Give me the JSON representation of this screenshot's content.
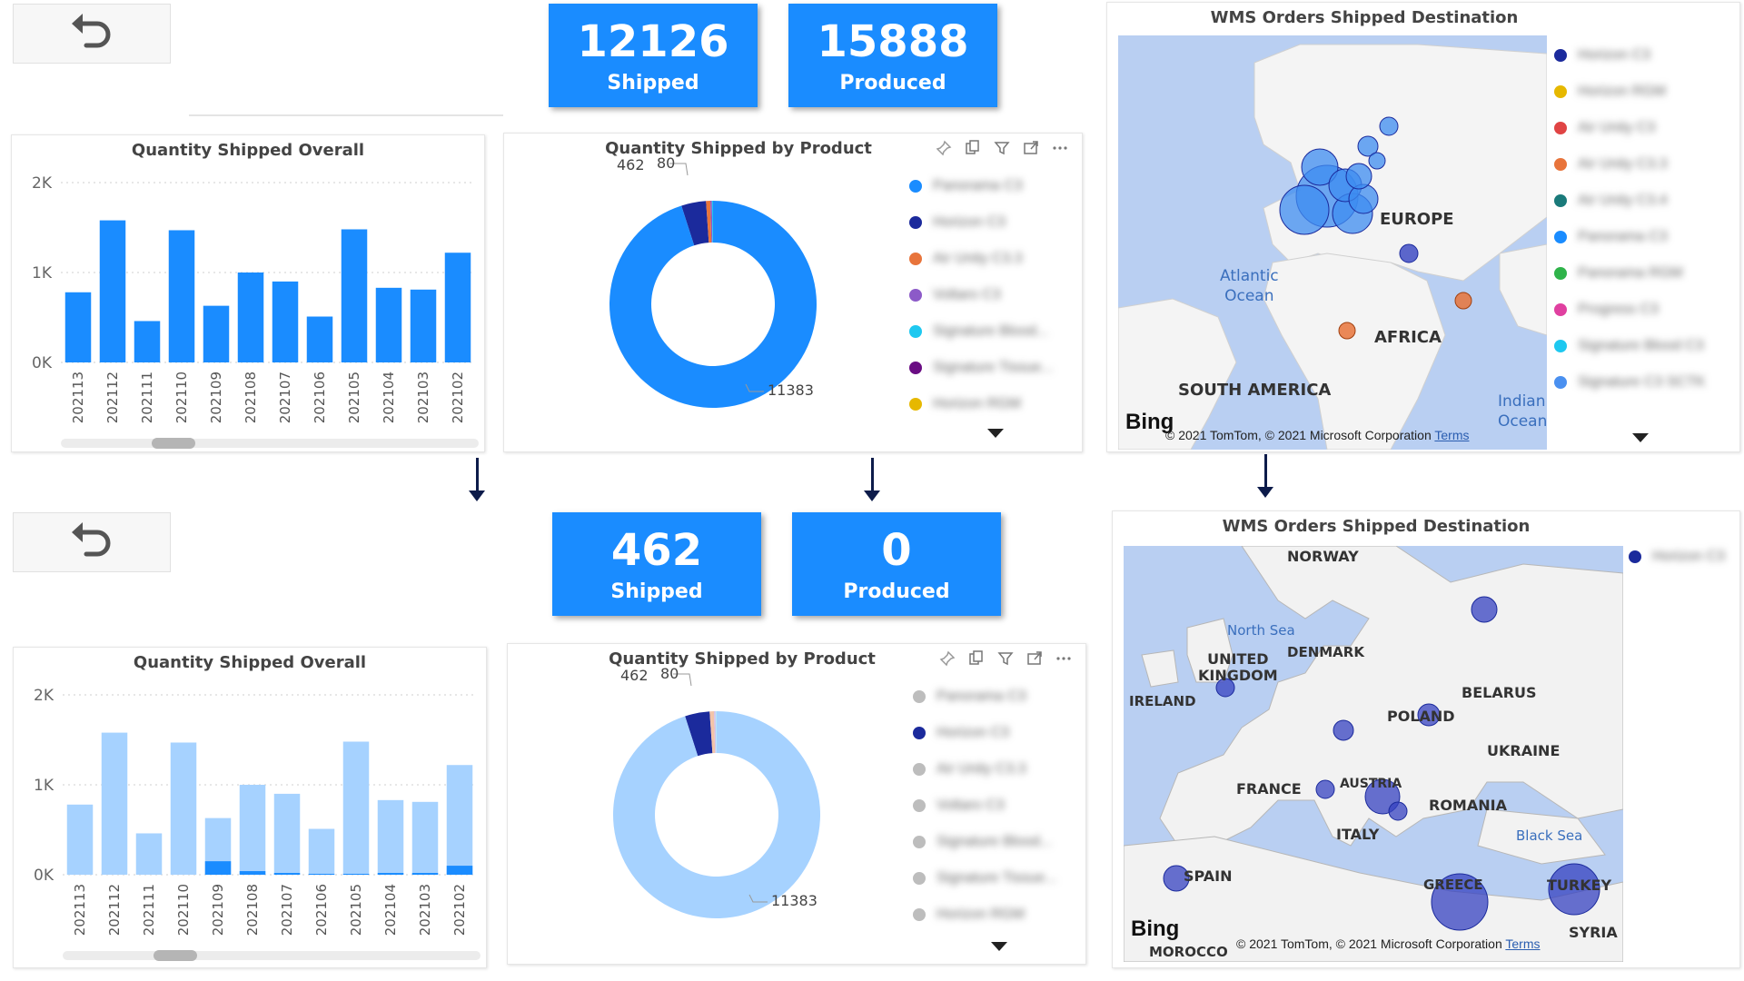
{
  "colors": {
    "brand_blue": "#1a8cff",
    "light_blue": "#a6d2ff",
    "navy": "#1b2a9c",
    "bubble_top": "#3d8cf0",
    "bubble_bottom": "#3542c0",
    "map_water": "#b9cff2",
    "arrow": "#0d1b4a"
  },
  "icons": {
    "back": "undo-arrow-icon",
    "pin": "pin-icon",
    "copy": "copy-icon",
    "filter": "filter-icon",
    "focus": "focus-mode-icon",
    "more": "more-options-icon",
    "scroll_down": "chevron-down-icon"
  },
  "top": {
    "cards": [
      {
        "value": "12126",
        "label": "Shipped"
      },
      {
        "value": "15888",
        "label": "Produced"
      }
    ],
    "bar_panel": {
      "title": "Quantity Shipped Overall"
    },
    "donut_panel": {
      "title": "Quantity Shipped by Product",
      "labels": {
        "a": "462",
        "b": "80",
        "main": "11383"
      },
      "legend": [
        {
          "text": "Panorama C3",
          "color": "#1a8cff"
        },
        {
          "text": "Horizon C3",
          "color": "#1b2a9c"
        },
        {
          "text": "Air Unity C3.3",
          "color": "#e8743b"
        },
        {
          "text": "Voltaro C3",
          "color": "#8c5ac8"
        },
        {
          "text": "Signature Blood...",
          "color": "#1ec8f0"
        },
        {
          "text": "Signature Tissue...",
          "color": "#6a0d83"
        },
        {
          "text": "Horizon RGM",
          "color": "#e6b800"
        }
      ]
    },
    "map_panel": {
      "title": "WMS Orders Shipped Destination",
      "labels": {
        "europe": "EUROPE",
        "africa": "AFRICA",
        "south_america": "SOUTH AMERICA"
      },
      "seas": {
        "atlantic": "Atlantic\nOcean",
        "indian": "Indian\nOcean"
      },
      "bing": "Bing",
      "copyright": "© 2021 TomTom, © 2021 Microsoft Corporation",
      "terms": "Terms",
      "legend": [
        {
          "text": "Horizon C3",
          "color": "#1b2a9c"
        },
        {
          "text": "Horizon RGM",
          "color": "#e6b800"
        },
        {
          "text": "Air Unity C3",
          "color": "#e04444"
        },
        {
          "text": "Air Unity C3.3",
          "color": "#e8743b"
        },
        {
          "text": "Air Unity C3.4",
          "color": "#1a7a7a"
        },
        {
          "text": "Panorama C3",
          "color": "#1a8cff"
        },
        {
          "text": "Panorama RGM",
          "color": "#2fb34a"
        },
        {
          "text": "Progress C3",
          "color": "#e040a0"
        },
        {
          "text": "Signature Blood C3",
          "color": "#1ec8f0"
        },
        {
          "text": "Signature C3 SCTK",
          "color": "#4a90f0"
        }
      ]
    }
  },
  "bottom": {
    "cards": [
      {
        "value": "462",
        "label": "Shipped"
      },
      {
        "value": "0",
        "label": "Produced"
      }
    ],
    "bar_panel": {
      "title": "Quantity Shipped Overall"
    },
    "donut_panel": {
      "title": "Quantity Shipped by Product",
      "labels": {
        "a": "462",
        "b": "80",
        "main": "11383"
      },
      "legend": [
        {
          "text": "Panorama C3",
          "color": "#bdbdbd"
        },
        {
          "text": "Horizon C3",
          "color": "#1b2a9c"
        },
        {
          "text": "Air Unity C3.3",
          "color": "#bdbdbd"
        },
        {
          "text": "Voltaro C3",
          "color": "#bdbdbd"
        },
        {
          "text": "Signature Blood...",
          "color": "#bdbdbd"
        },
        {
          "text": "Signature Tissue...",
          "color": "#bdbdbd"
        },
        {
          "text": "Horizon RGM",
          "color": "#bdbdbd"
        }
      ]
    },
    "map_panel": {
      "title": "WMS Orders Shipped Destination",
      "labels": {
        "norway": "NORWAY",
        "uk": "UNITED\nKINGDOM",
        "denmark": "DENMARK",
        "ireland": "IRELAND",
        "belarus": "BELARUS",
        "poland": "POLAND",
        "ukraine": "UKRAINE",
        "france": "FRANCE",
        "austria": "AUSTRIA",
        "romania": "ROMANIA",
        "italy": "ITALY",
        "spain": "SPAIN",
        "greece": "GREECE",
        "turkey": "TURKEY",
        "syria": "SYRIA",
        "morocco": "MOROCCO"
      },
      "seas": {
        "north": "North Sea",
        "black": "Black Sea"
      },
      "bing": "Bing",
      "copyright": "© 2021 TomTom, © 2021 Microsoft Corporation",
      "terms": "Terms",
      "legend": [
        {
          "text": "Horizon C3",
          "color": "#1b2a9c"
        }
      ]
    }
  },
  "chart_data": [
    {
      "type": "bar",
      "title": "Quantity Shipped Overall",
      "categories": [
        "202113",
        "202112",
        "202111",
        "202110",
        "202109",
        "202108",
        "202107",
        "202106",
        "202105",
        "202104",
        "202103",
        "202102"
      ],
      "values": [
        780,
        1580,
        460,
        1470,
        630,
        1000,
        900,
        510,
        1480,
        830,
        810,
        1220
      ],
      "ylim": [
        0,
        2000
      ],
      "yticks": [
        "0K",
        "1K",
        "2K"
      ],
      "grid": true
    },
    {
      "type": "pie",
      "title": "Quantity Shipped by Product",
      "slices": [
        {
          "value": 11383,
          "color": "#1a8cff"
        },
        {
          "value": 462,
          "color": "#1b2a9c"
        },
        {
          "value": 80,
          "color": "#e8743b"
        },
        {
          "value": 30,
          "color": "#8c5ac8"
        },
        {
          "value": 20,
          "color": "#1ec8f0"
        }
      ],
      "data_labels": [
        "11383",
        "462",
        "80"
      ]
    },
    {
      "type": "bar",
      "title": "Quantity Shipped Overall",
      "categories": [
        "202113",
        "202112",
        "202111",
        "202110",
        "202109",
        "202108",
        "202107",
        "202106",
        "202105",
        "202104",
        "202103",
        "202102"
      ],
      "series": [
        {
          "values": [
            780,
            1580,
            460,
            1470,
            630,
            1000,
            900,
            510,
            1480,
            830,
            810,
            1220
          ]
        },
        {
          "values": [
            0,
            0,
            0,
            0,
            150,
            40,
            20,
            10,
            10,
            20,
            20,
            100
          ]
        }
      ],
      "ylim": [
        0,
        2000
      ],
      "yticks": [
        "0K",
        "1K",
        "2K"
      ],
      "grid": true
    },
    {
      "type": "pie",
      "title": "Quantity Shipped by Product",
      "slices": [
        {
          "value": 11383,
          "color": "#a6d2ff"
        },
        {
          "value": 462,
          "color": "#1b2a9c"
        },
        {
          "value": 80,
          "color": "#f3c4a8"
        },
        {
          "value": 30,
          "color": "#d3c0ea"
        },
        {
          "value": 20,
          "color": "#b8e7f5"
        }
      ],
      "data_labels": [
        "11383",
        "462",
        "80"
      ]
    }
  ]
}
